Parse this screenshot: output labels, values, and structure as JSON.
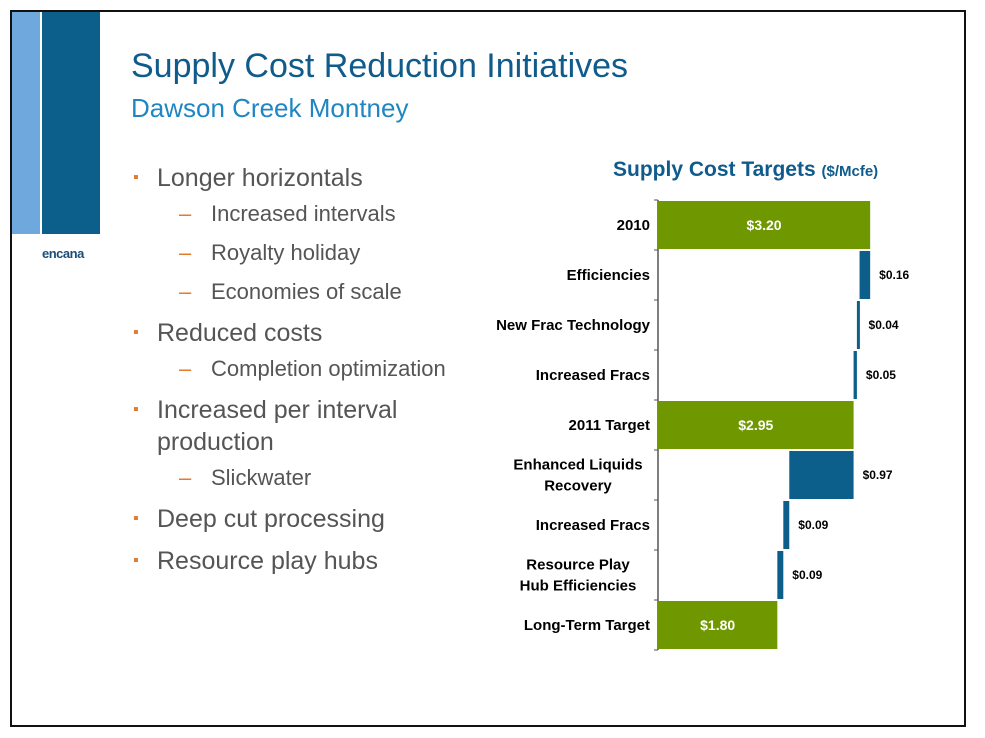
{
  "slide": {
    "title": "Supply Cost Reduction Initiatives",
    "subtitle": "Dawson Creek Montney",
    "logo": "encana",
    "colors": {
      "dark_blue": "#0b5f8a",
      "light_blue": "#6fa8dc",
      "green": "#6f9800",
      "bullet_orange": "#e07b2f"
    }
  },
  "bullets": [
    {
      "text": "Longer horizontals",
      "sub": [
        "Increased intervals",
        "Royalty holiday",
        "Economies of scale"
      ]
    },
    {
      "text": "Reduced costs",
      "sub": [
        "Completion optimization"
      ]
    },
    {
      "text": "Increased per interval production",
      "sub": [
        "Slickwater"
      ]
    },
    {
      "text": "Deep cut processing",
      "sub": []
    },
    {
      "text": "Resource play hubs",
      "sub": []
    }
  ],
  "chart_data": {
    "type": "bar",
    "subtype": "waterfall",
    "title": "Supply Cost Targets",
    "unit": "($/Mcfe)",
    "orientation": "horizontal",
    "categories": [
      "2010",
      "Efficiencies",
      "New Frac Technology",
      "Increased Fracs",
      "2011 Target",
      "Enhanced Liquids Recovery",
      "Increased Fracs",
      "Resource Play Hub Efficiencies",
      "Long-Term Target"
    ],
    "values": [
      3.2,
      -0.16,
      -0.04,
      -0.05,
      2.95,
      -0.97,
      -0.09,
      -0.09,
      1.8
    ],
    "labels": [
      "$3.20",
      "$0.16",
      "$0.04",
      "$0.05",
      "$2.95",
      "$0.97",
      "$0.09",
      "$0.09",
      "$1.80"
    ],
    "kinds": [
      "total",
      "delta",
      "delta",
      "delta",
      "total",
      "delta",
      "delta",
      "delta",
      "total"
    ]
  }
}
